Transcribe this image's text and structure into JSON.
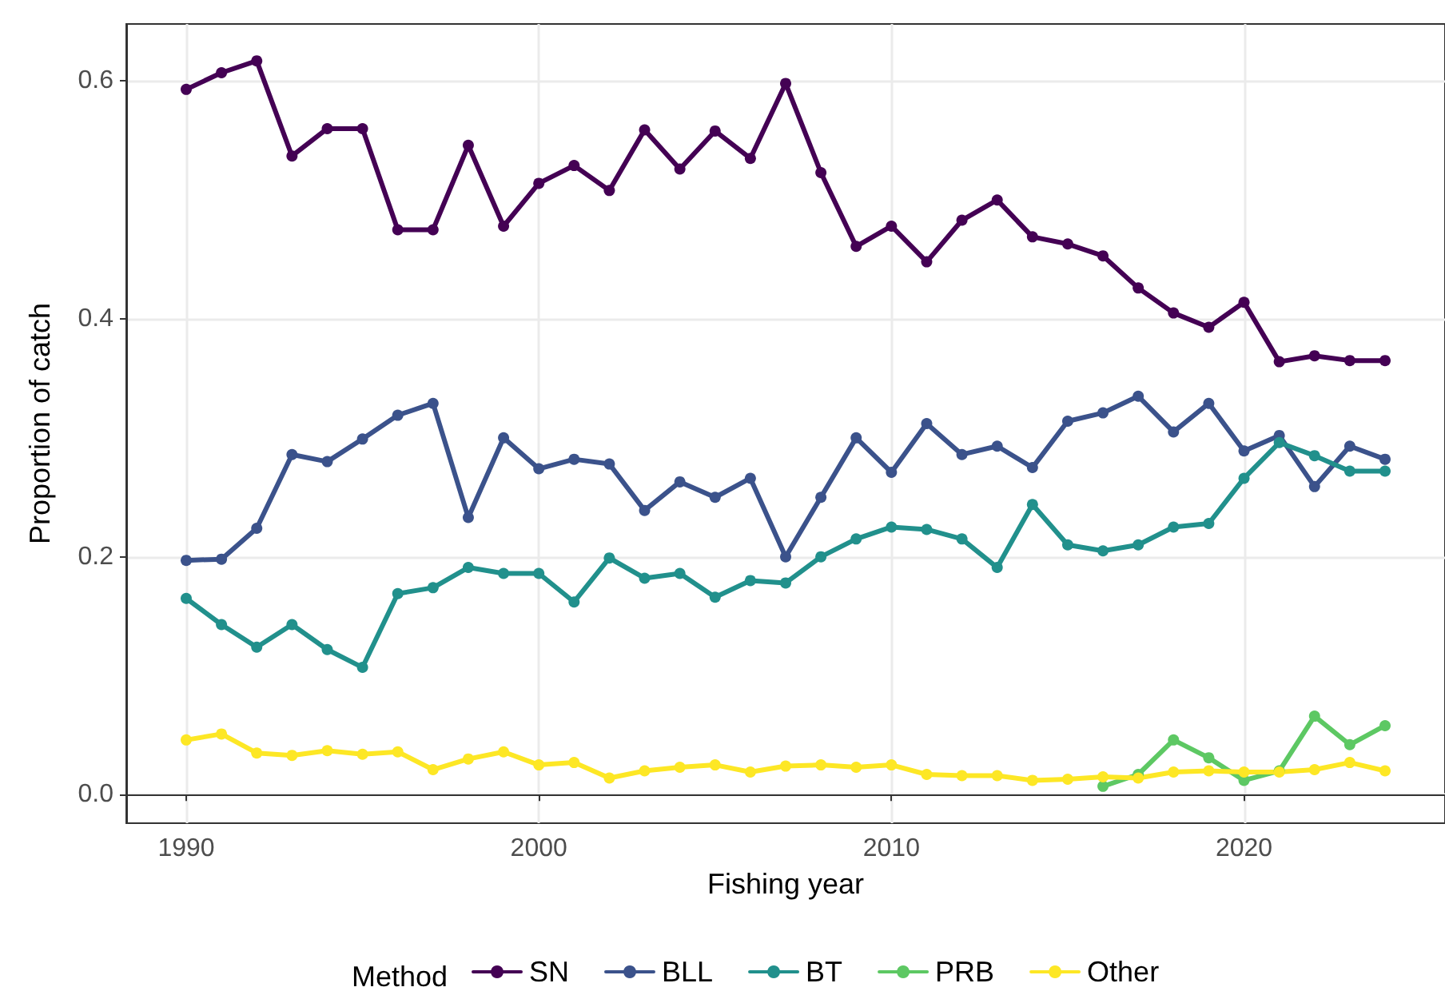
{
  "chart_data": {
    "type": "line",
    "xlabel": "Fishing year",
    "ylabel": "Proportion of catch",
    "legend_title": "Method",
    "x": [
      1990,
      1991,
      1992,
      1993,
      1994,
      1995,
      1996,
      1997,
      1998,
      1999,
      2000,
      2001,
      2002,
      2003,
      2004,
      2005,
      2006,
      2007,
      2008,
      2009,
      2010,
      2011,
      2012,
      2013,
      2014,
      2015,
      2016,
      2017,
      2018,
      2019,
      2020,
      2021,
      2022,
      2023,
      2024
    ],
    "series": [
      {
        "name": "SN",
        "color": "#440154",
        "values": [
          0.593,
          0.607,
          0.617,
          0.537,
          0.56,
          0.56,
          0.475,
          0.475,
          0.546,
          0.478,
          0.514,
          0.529,
          0.508,
          0.559,
          0.526,
          0.558,
          0.535,
          0.598,
          0.523,
          0.461,
          0.478,
          0.448,
          0.483,
          0.5,
          0.469,
          0.463,
          0.453,
          0.426,
          0.405,
          0.393,
          0.414,
          0.364,
          0.369,
          0.365,
          0.365
        ]
      },
      {
        "name": "BLL",
        "color": "#3b528b",
        "values": [
          0.197,
          0.198,
          0.224,
          0.286,
          0.28,
          0.299,
          0.319,
          0.329,
          0.233,
          0.3,
          0.274,
          0.282,
          0.278,
          0.239,
          0.263,
          0.25,
          0.266,
          0.2,
          0.25,
          0.3,
          0.271,
          0.312,
          0.286,
          0.293,
          0.275,
          0.314,
          0.321,
          0.335,
          0.305,
          0.329,
          0.289,
          0.302,
          0.259,
          0.293,
          0.282
        ]
      },
      {
        "name": "BT",
        "color": "#21908c",
        "values": [
          0.165,
          0.143,
          0.124,
          0.143,
          0.122,
          0.107,
          0.169,
          0.174,
          0.191,
          0.186,
          0.186,
          0.162,
          0.199,
          0.182,
          0.186,
          0.166,
          0.18,
          0.178,
          0.2,
          0.215,
          0.225,
          0.223,
          0.215,
          0.191,
          0.244,
          0.21,
          0.205,
          0.21,
          0.225,
          0.228,
          0.266,
          0.296,
          0.285,
          0.272,
          0.272
        ]
      },
      {
        "name": "PRB",
        "color": "#5dc863",
        "values": [
          null,
          null,
          null,
          null,
          null,
          null,
          null,
          null,
          null,
          null,
          null,
          null,
          null,
          null,
          null,
          null,
          null,
          null,
          null,
          null,
          null,
          null,
          null,
          null,
          null,
          null,
          0.007,
          0.017,
          0.046,
          0.031,
          0.012,
          0.02,
          0.066,
          0.042,
          0.058
        ]
      },
      {
        "name": "Other",
        "color": "#fde725",
        "values": [
          0.046,
          0.051,
          0.035,
          0.033,
          0.037,
          0.034,
          0.036,
          0.021,
          0.03,
          0.036,
          0.025,
          0.027,
          0.014,
          0.02,
          0.023,
          0.025,
          0.019,
          0.024,
          0.025,
          0.023,
          0.025,
          0.017,
          0.016,
          0.016,
          0.012,
          0.013,
          0.015,
          0.014,
          0.019,
          0.02,
          0.019,
          0.019,
          0.021,
          0.027,
          0.02
        ]
      }
    ],
    "xlim": [
      1988.3,
      2025.7
    ],
    "xticks": [
      1990,
      2000,
      2010,
      2020
    ],
    "ylim": [
      -0.024,
      0.648
    ],
    "yticks": [
      {
        "value": 0,
        "label": "0.0"
      },
      {
        "value": 0.2,
        "label": "0.2"
      },
      {
        "value": 0.4,
        "label": "0.4"
      },
      {
        "value": 0.6,
        "label": "0.6"
      }
    ],
    "grid": true,
    "legend": "bottom",
    "marker": "circle",
    "line_style": "solid"
  }
}
